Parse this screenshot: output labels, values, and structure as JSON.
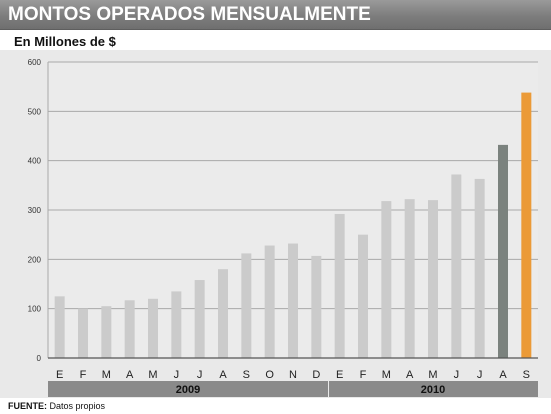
{
  "header": {
    "title": "MONTOS OPERADOS MENSUALMENTE",
    "subtitle": "En Millones de $"
  },
  "footer": {
    "source_label": "FUENTE:",
    "source_text": "Datos propios"
  },
  "chart_data": {
    "type": "bar",
    "title": "MONTOS OPERADOS MENSUALMENTE",
    "subtitle": "En Millones de $",
    "xlabel": "",
    "ylabel": "",
    "ylim": [
      0,
      600
    ],
    "yticks": [
      0,
      100,
      200,
      300,
      400,
      500,
      600
    ],
    "grid": true,
    "legend": "none",
    "categories": [
      "E",
      "F",
      "M",
      "A",
      "M",
      "J",
      "J",
      "A",
      "S",
      "O",
      "N",
      "D",
      "E",
      "F",
      "M",
      "A",
      "M",
      "J",
      "J",
      "A",
      "S"
    ],
    "values": [
      125,
      100,
      105,
      117,
      120,
      135,
      158,
      180,
      212,
      228,
      232,
      207,
      292,
      250,
      318,
      322,
      320,
      372,
      363,
      432,
      538
    ],
    "year_groups": [
      {
        "label": "2009",
        "start": 0,
        "count": 12
      },
      {
        "label": "2010",
        "start": 12,
        "count": 9
      }
    ],
    "colors": {
      "default": "#cbcbcb",
      "highlight_previous": "#7b827e",
      "highlight_current": "#eb9a37",
      "year_band": "#8a8a8a"
    },
    "highlight": {
      "previous_index": 19,
      "current_index": 20
    }
  }
}
